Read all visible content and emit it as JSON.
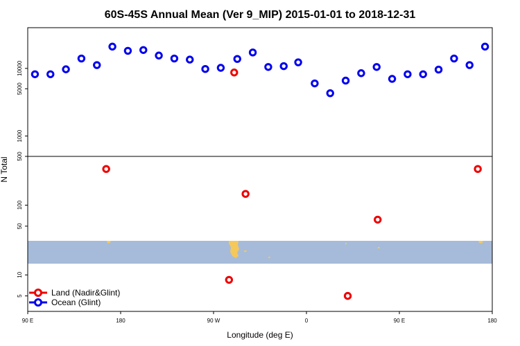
{
  "chart_data": {
    "type": "scatter",
    "title": "60S-45S Annual Mean (Ver 9_MIP)   2015-01-01 to 2018-12-31",
    "xlabel": "Longitude (deg E)",
    "ylabel": "N Total",
    "x_ticks": [
      {
        "value": 90,
        "label": "90 E"
      },
      {
        "value": 180,
        "label": "180"
      },
      {
        "value": 270,
        "label": "90 W"
      },
      {
        "value": 360,
        "label": "0"
      },
      {
        "value": 450,
        "label": "90 E"
      },
      {
        "value": 540,
        "label": "180"
      }
    ],
    "xlim": [
      90,
      540
    ],
    "yscale": "log",
    "ocean_panel": {
      "ylim": [
        500,
        40000
      ],
      "y_ticks": [
        {
          "value": 500,
          "label": "500"
        },
        {
          "value": 1000,
          "label": "1000"
        },
        {
          "value": 5000,
          "label": "5000"
        },
        {
          "value": 10000,
          "label": "10000"
        }
      ]
    },
    "land_panel": {
      "ylim": [
        3,
        500
      ],
      "y_ticks": [
        {
          "value": 5,
          "label": "5"
        },
        {
          "value": 10,
          "label": "10"
        },
        {
          "value": 50,
          "label": "50"
        },
        {
          "value": 100,
          "label": "100"
        }
      ]
    },
    "map_strip": {
      "lat_range": [
        -60,
        -45
      ],
      "ocean_color": "#a6bbd9",
      "land_color": "#f5c85a"
    },
    "series": [
      {
        "name": "Ocean (Glint)",
        "color": "#0000ee",
        "panel": "ocean",
        "points": [
          {
            "x": 97,
            "y": 8200
          },
          {
            "x": 112,
            "y": 8200
          },
          {
            "x": 127,
            "y": 9700
          },
          {
            "x": 142,
            "y": 14000
          },
          {
            "x": 157,
            "y": 11200
          },
          {
            "x": 172,
            "y": 21000
          },
          {
            "x": 187,
            "y": 18200
          },
          {
            "x": 202,
            "y": 18700
          },
          {
            "x": 217,
            "y": 15500
          },
          {
            "x": 232,
            "y": 14000
          },
          {
            "x": 247,
            "y": 13500
          },
          {
            "x": 262,
            "y": 9800
          },
          {
            "x": 277,
            "y": 10200
          },
          {
            "x": 293,
            "y": 13800
          },
          {
            "x": 308,
            "y": 17200
          },
          {
            "x": 323,
            "y": 10500
          },
          {
            "x": 338,
            "y": 10800
          },
          {
            "x": 352,
            "y": 12300
          },
          {
            "x": 368,
            "y": 6000
          },
          {
            "x": 383,
            "y": 4300
          },
          {
            "x": 398,
            "y": 6600
          },
          {
            "x": 413,
            "y": 8500
          },
          {
            "x": 428,
            "y": 10500
          },
          {
            "x": 443,
            "y": 7000
          },
          {
            "x": 458,
            "y": 8200
          },
          {
            "x": 473,
            "y": 8200
          },
          {
            "x": 488,
            "y": 9600
          },
          {
            "x": 503,
            "y": 14000
          },
          {
            "x": 518,
            "y": 11200
          },
          {
            "x": 533,
            "y": 21000
          }
        ]
      },
      {
        "name": "Land (Nadir&Glint)",
        "color": "#ee0000",
        "panel": "mixed",
        "points": [
          {
            "x": 290,
            "y": 8700
          },
          {
            "x": 166,
            "y": 330
          },
          {
            "x": 301,
            "y": 145
          },
          {
            "x": 429,
            "y": 62
          },
          {
            "x": 526,
            "y": 330
          },
          {
            "x": 285,
            "y": 8.5
          },
          {
            "x": 400,
            "y": 5
          }
        ]
      }
    ],
    "legend": {
      "placement": "bottom-left",
      "entries": [
        "Land (Nadir&Glint)",
        "Ocean (Glint)"
      ]
    }
  }
}
